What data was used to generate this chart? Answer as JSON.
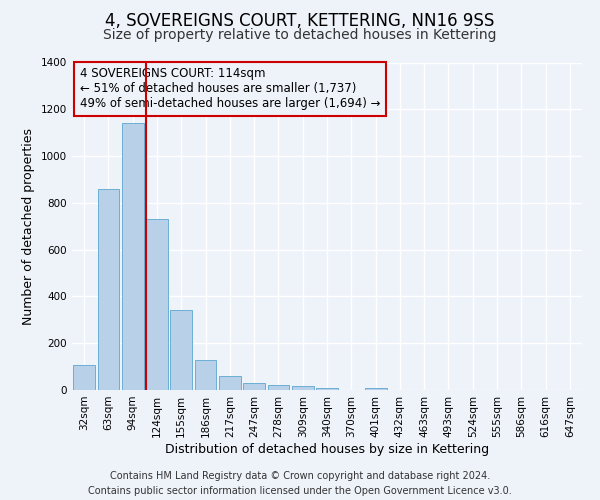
{
  "title": "4, SOVEREIGNS COURT, KETTERING, NN16 9SS",
  "subtitle": "Size of property relative to detached houses in Kettering",
  "xlabel": "Distribution of detached houses by size in Kettering",
  "ylabel": "Number of detached properties",
  "bar_labels": [
    "32sqm",
    "63sqm",
    "94sqm",
    "124sqm",
    "155sqm",
    "186sqm",
    "217sqm",
    "247sqm",
    "278sqm",
    "309sqm",
    "340sqm",
    "370sqm",
    "401sqm",
    "432sqm",
    "463sqm",
    "493sqm",
    "524sqm",
    "555sqm",
    "586sqm",
    "616sqm",
    "647sqm"
  ],
  "bar_values": [
    105,
    860,
    1140,
    730,
    340,
    130,
    60,
    30,
    20,
    15,
    10,
    0,
    10,
    0,
    0,
    0,
    0,
    0,
    0,
    0,
    0
  ],
  "bar_color": "#b8d0e8",
  "bar_edge_color": "#6baed6",
  "marker_label": "4 SOVEREIGNS COURT: 114sqm",
  "annotation_line1": "← 51% of detached houses are smaller (1,737)",
  "annotation_line2": "49% of semi-detached houses are larger (1,694) →",
  "vline_color": "#cc0000",
  "box_edge_color": "#cc0000",
  "vline_x": 2.54,
  "ylim": [
    0,
    1400
  ],
  "yticks": [
    0,
    200,
    400,
    600,
    800,
    1000,
    1200,
    1400
  ],
  "footer_line1": "Contains HM Land Registry data © Crown copyright and database right 2024.",
  "footer_line2": "Contains public sector information licensed under the Open Government Licence v3.0.",
  "bg_color": "#eef2f9",
  "grid_color": "#ffffff",
  "title_fontsize": 12,
  "subtitle_fontsize": 10,
  "axis_label_fontsize": 9,
  "tick_fontsize": 7.5,
  "annotation_fontsize": 8.5,
  "footer_fontsize": 7
}
